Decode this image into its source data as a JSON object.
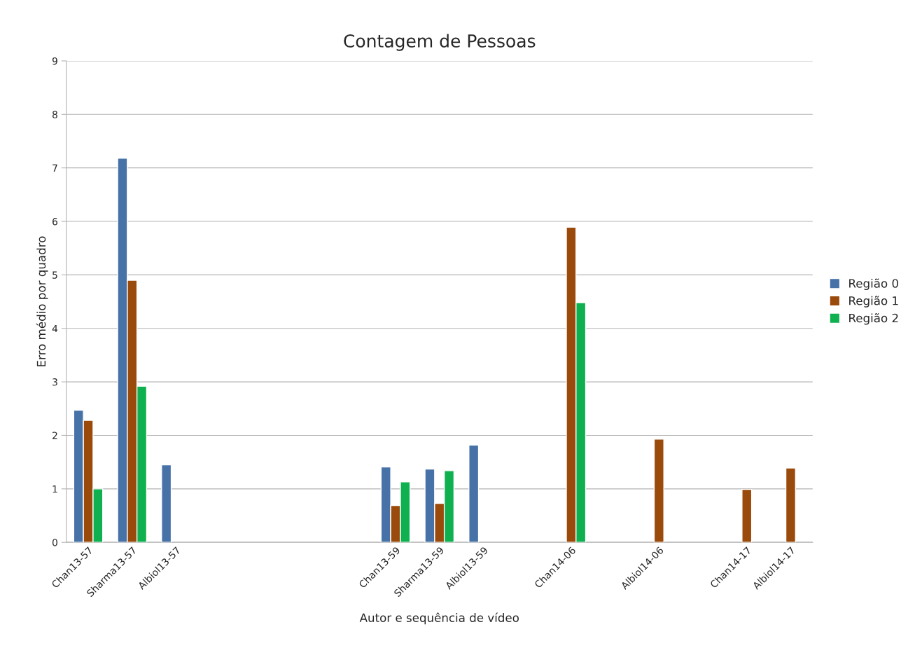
{
  "chart_data": {
    "type": "bar",
    "title": "Contagem de Pessoas",
    "xlabel": "Autor e sequência de vídeo",
    "ylabel": "Erro médio por quadro",
    "categories": [
      "Chan13-57",
      "Sharma13-57",
      "Albiol13-57",
      null,
      null,
      null,
      null,
      "Chan13-59",
      "Sharma13-59",
      "Albiol13-59",
      null,
      "Chan14-06",
      null,
      "Albiol14-06",
      null,
      "Chan14-17",
      "Albiol14-17"
    ],
    "series": [
      {
        "name": "Região 0",
        "color": "#4672a8",
        "values": [
          2.47,
          7.18,
          1.45,
          null,
          null,
          null,
          null,
          1.41,
          1.37,
          1.82,
          null,
          null,
          null,
          null,
          null,
          null,
          null
        ]
      },
      {
        "name": "Região 1",
        "color": "#9a4a0b",
        "values": [
          2.28,
          4.9,
          null,
          null,
          null,
          null,
          null,
          0.69,
          0.73,
          null,
          null,
          5.89,
          null,
          1.93,
          null,
          0.99,
          1.39
        ]
      },
      {
        "name": "Região 2",
        "color": "#0fb04f",
        "values": [
          1.0,
          2.92,
          null,
          null,
          null,
          null,
          null,
          1.13,
          1.34,
          null,
          null,
          4.48,
          null,
          null,
          null,
          null,
          null
        ]
      }
    ],
    "ylim": [
      0,
      9
    ],
    "yticks": [
      0,
      1,
      2,
      3,
      4,
      5,
      6,
      7,
      8,
      9
    ],
    "grid": "y",
    "legend": "right"
  }
}
